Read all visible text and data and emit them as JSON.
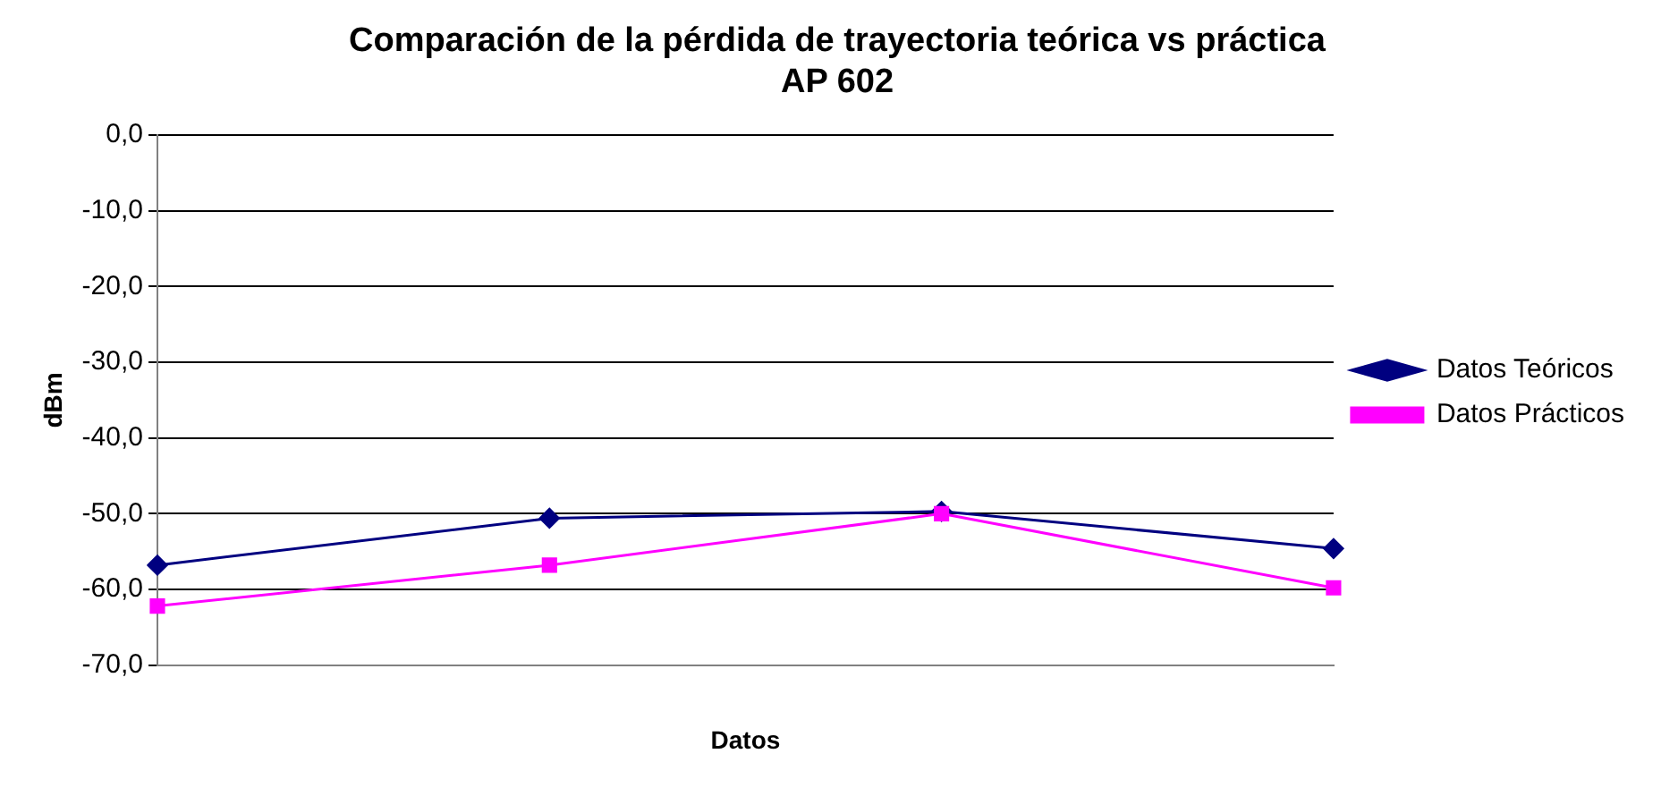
{
  "chart_data": {
    "type": "line",
    "title": "Comparación de la pérdida de trayectoria teórica vs práctica\nAP 602",
    "xlabel": "Datos",
    "ylabel": "dBm",
    "categories": [
      null,
      null,
      null,
      null
    ],
    "series": [
      {
        "name": "Datos Teóricos",
        "color": "#000080",
        "marker": "diamond",
        "values": [
          -56.8,
          -50.6,
          -49.7,
          -54.6
        ]
      },
      {
        "name": "Datos Prácticos",
        "color": "#ff00ff",
        "marker": "square",
        "values": [
          -62.2,
          -56.8,
          -50.0,
          -59.8
        ]
      }
    ],
    "ylim": [
      -70,
      0
    ],
    "yticks": [
      {
        "value": -70,
        "label": "-70,0"
      },
      {
        "value": -60,
        "label": "-60,0"
      },
      {
        "value": -50,
        "label": "-50,0"
      },
      {
        "value": -40,
        "label": "-40,0"
      },
      {
        "value": -30,
        "label": "-30,0"
      },
      {
        "value": -20,
        "label": "-20,0"
      },
      {
        "value": -10,
        "label": "-10,0"
      },
      {
        "value": 0,
        "label": "0,0"
      }
    ],
    "grid": "y",
    "legend": "right",
    "line_style": "solid"
  }
}
